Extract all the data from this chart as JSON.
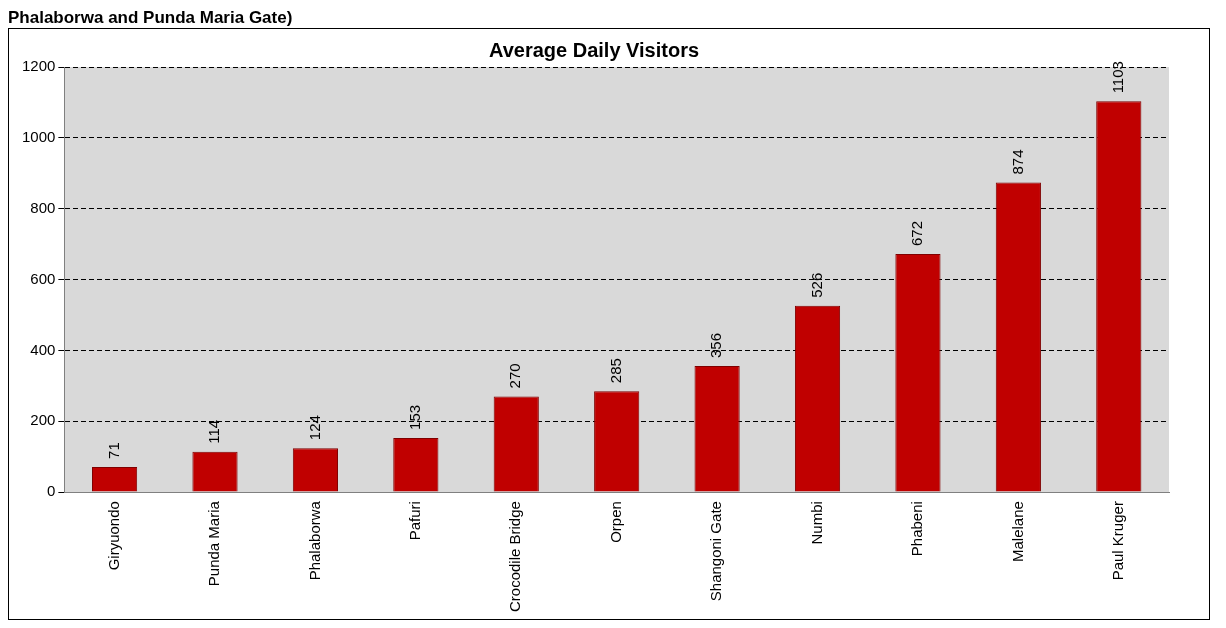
{
  "chart_data": {
    "type": "bar",
    "title": "Average Daily Visitors",
    "annotations": [
      "Phalaborwa and Punda Maria Gate)"
    ],
    "categories": [
      "Giryuondo",
      "Punda Maria",
      "Phalaborwa",
      "Pafuri",
      "Crocodile Bridge",
      "Orpen",
      "Shangoni Gate",
      "Numbi",
      "Phabeni",
      "Malelane",
      "Paul Kruger"
    ],
    "values": [
      71,
      114,
      124,
      153,
      270,
      285,
      356,
      526,
      672,
      874,
      1103
    ],
    "color": "#c00000",
    "ylim": [
      0,
      1200
    ],
    "yticks": [
      0,
      200,
      400,
      600,
      800,
      1000,
      1200
    ],
    "grid": "y",
    "legend": false,
    "data_labels": true
  }
}
